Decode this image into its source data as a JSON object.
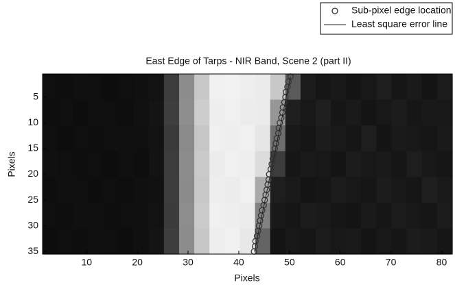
{
  "chart_data": {
    "type": "image",
    "title": "East Edge of Tarps - NIR Band, Scene 2 (part II)",
    "xlabel": "Pixels",
    "ylabel": "Pixels",
    "xlim": [
      1.3,
      82.1
    ],
    "ylim": [
      35.5,
      0.5
    ],
    "xticks": [
      10,
      20,
      30,
      40,
      50,
      60,
      70,
      80
    ],
    "yticks": [
      5,
      10,
      15,
      20,
      25,
      30,
      35
    ],
    "legend": "upper right",
    "image": {
      "rows": [
        [
          15,
          14,
          16,
          15,
          13,
          15,
          16,
          18,
          60,
          140,
          200,
          240,
          242,
          238,
          235,
          200,
          90,
          28,
          22,
          25,
          20,
          24,
          30,
          22,
          26,
          20,
          28
        ],
        [
          14,
          15,
          13,
          16,
          15,
          14,
          17,
          20,
          62,
          142,
          205,
          238,
          240,
          236,
          235,
          150,
          30,
          24,
          30,
          22,
          26,
          20,
          24,
          28,
          22,
          25,
          24
        ],
        [
          15,
          13,
          15,
          14,
          16,
          15,
          15,
          18,
          58,
          138,
          198,
          240,
          238,
          240,
          230,
          110,
          25,
          22,
          28,
          26,
          22,
          30,
          20,
          26,
          24,
          22,
          26
        ],
        [
          16,
          15,
          14,
          15,
          13,
          16,
          14,
          19,
          60,
          140,
          202,
          236,
          240,
          238,
          220,
          60,
          22,
          26,
          24,
          20,
          28,
          24,
          26,
          22,
          30,
          24,
          22
        ],
        [
          14,
          16,
          15,
          13,
          15,
          14,
          16,
          17,
          61,
          139,
          200,
          238,
          236,
          240,
          170,
          30,
          26,
          20,
          22,
          28,
          24,
          22,
          28,
          24,
          22,
          30,
          26
        ],
        [
          15,
          14,
          16,
          15,
          14,
          15,
          15,
          18,
          59,
          141,
          203,
          240,
          238,
          236,
          130,
          25,
          22,
          28,
          26,
          22,
          20,
          26,
          22,
          28,
          24,
          22,
          28
        ],
        [
          13,
          15,
          14,
          16,
          15,
          13,
          16,
          20,
          62,
          140,
          199,
          237,
          240,
          232,
          100,
          20,
          24,
          22,
          28,
          24,
          26,
          20,
          24,
          22,
          28,
          26,
          22
        ]
      ]
    },
    "series": [
      {
        "name": "Sub-pixel edge location",
        "type": "scatter",
        "color": "#333333",
        "x": [
          50.2,
          49.8,
          49.6,
          49.3,
          49.2,
          49.0,
          48.7,
          48.6,
          48.4,
          48.1,
          47.9,
          47.8,
          47.5,
          47.3,
          47.1,
          46.9,
          46.7,
          46.5,
          46.3,
          46.0,
          45.9,
          45.7,
          45.5,
          45.3,
          45.1,
          44.9,
          44.6,
          44.4,
          44.2,
          44.0,
          43.8,
          43.6,
          43.3,
          43.2,
          43.0
        ],
        "y": [
          1,
          2,
          3,
          4,
          5,
          6,
          7,
          8,
          9,
          10,
          11,
          12,
          13,
          14,
          15,
          16,
          17,
          18,
          19,
          20,
          21,
          22,
          23,
          24,
          25,
          26,
          27,
          28,
          29,
          30,
          31,
          32,
          33,
          34,
          35
        ]
      },
      {
        "name": "Least square error line",
        "type": "line",
        "color": "#222222",
        "x": [
          50.2,
          43.1
        ],
        "y": [
          1,
          35
        ]
      }
    ]
  }
}
